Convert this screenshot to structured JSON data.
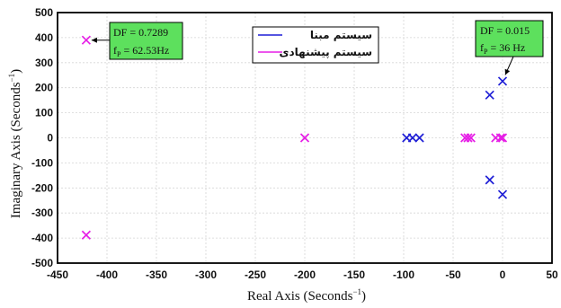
{
  "chart_data": {
    "type": "scatter",
    "title": "",
    "xlabel": "Real Axis",
    "ylabel": "Imaginary Axis",
    "xunit": "Seconds",
    "yunit": "Seconds",
    "unit_exponent": "−1",
    "xlim": [
      -450,
      50
    ],
    "ylim": [
      -500,
      500
    ],
    "xticks": [
      -450,
      -400,
      -350,
      -300,
      -250,
      -200,
      -150,
      -100,
      -50,
      0,
      50
    ],
    "yticks": [
      -500,
      -400,
      -300,
      -200,
      -100,
      0,
      100,
      200,
      300,
      400,
      500
    ],
    "grid": true,
    "legend_position": "top-center",
    "marker": "x",
    "series": [
      {
        "name": "سیستم مبنا",
        "color": "#1f1fd6",
        "points": [
          {
            "x": 0,
            "y": 226
          },
          {
            "x": -13,
            "y": 171
          },
          {
            "x": -97,
            "y": 0
          },
          {
            "x": -91,
            "y": 0
          },
          {
            "x": -84,
            "y": 0
          },
          {
            "x": -13,
            "y": -168
          },
          {
            "x": 0,
            "y": -226
          }
        ]
      },
      {
        "name": "سیستم پیشنهادی",
        "color": "#e61ee6",
        "points": [
          {
            "x": -421,
            "y": 390
          },
          {
            "x": -200,
            "y": 0
          },
          {
            "x": -38,
            "y": 0
          },
          {
            "x": -35,
            "y": 0
          },
          {
            "x": -32,
            "y": 0
          },
          {
            "x": -7,
            "y": 0
          },
          {
            "x": -2,
            "y": 0
          },
          {
            "x": 0,
            "y": 0
          },
          {
            "x": -421,
            "y": -388
          }
        ]
      }
    ],
    "annotations": [
      {
        "line1": "DF = 0.7289",
        "line2_prefix": "f",
        "line2_sub": "P",
        "line2_value": " = 62.53Hz",
        "target": {
          "x": -421,
          "y": 390
        },
        "fill": "#5de05d"
      },
      {
        "line1": "DF = 0.015",
        "line2_prefix": "f",
        "line2_sub": "P",
        "line2_value": " = 36 Hz",
        "target": {
          "x": 0,
          "y": 226
        },
        "fill": "#5de05d"
      }
    ]
  }
}
